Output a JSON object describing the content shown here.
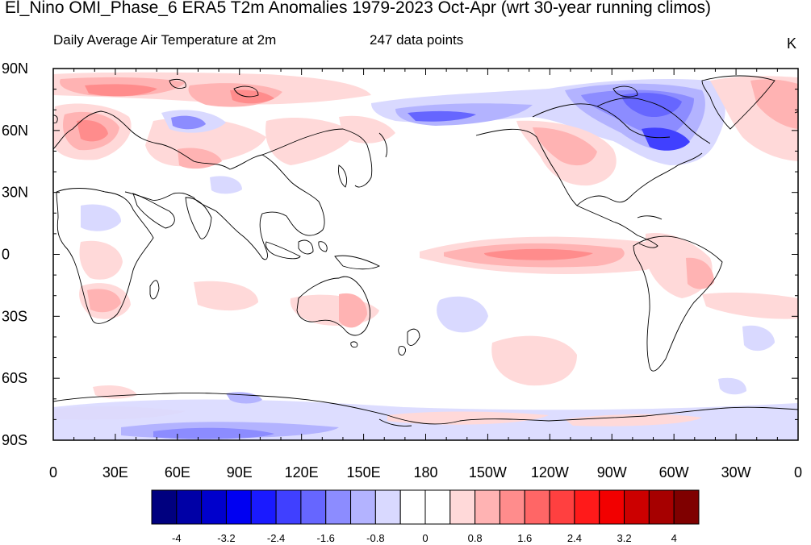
{
  "title": "El_Nino OMI_Phase_6 ERA5 T2m Anomalies 1979-2023 Oct-Apr (wrt 30-year running climos)",
  "subtitle": "Daily Average Air Temperature at 2m",
  "data_points": "247 data points",
  "units": "K",
  "map": {
    "projection": "cylindrical equidistant, centered on 180",
    "lat_labels": [
      "90N",
      "60N",
      "30N",
      "0",
      "30S",
      "60S",
      "90S"
    ],
    "lon_labels": [
      "0",
      "30E",
      "60E",
      "90E",
      "120E",
      "150E",
      "180",
      "150W",
      "120W",
      "90W",
      "60W",
      "30W",
      "0"
    ]
  },
  "colorbar": {
    "colors": [
      "#00007f",
      "#0000a6",
      "#0000cc",
      "#0000f2",
      "#1a1aff",
      "#4040ff",
      "#6666ff",
      "#8c8cff",
      "#b3b3ff",
      "#d9d9ff",
      "#ffffff",
      "#ffffff",
      "#ffd9d9",
      "#ffb3b3",
      "#ff8c8c",
      "#ff6666",
      "#ff4040",
      "#ff1a1a",
      "#f20000",
      "#cc0000",
      "#a60000",
      "#7f0000"
    ],
    "tick_labels": [
      "-4",
      "-3.2",
      "-2.4",
      "-1.6",
      "-0.8",
      "0",
      "0.8",
      "1.6",
      "2.4",
      "3.2",
      "4"
    ]
  }
}
